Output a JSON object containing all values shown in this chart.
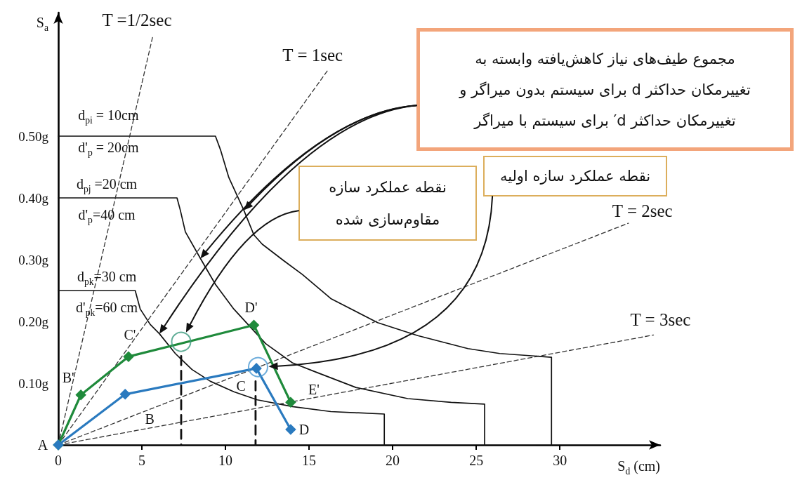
{
  "chart_data": {
    "type": "line",
    "xlabel": "S$_{d}$ (cm)",
    "ylabel": "S$_{a}$",
    "xlim": [
      0,
      36
    ],
    "ylim": [
      0,
      0.7
    ],
    "xticks": [
      0,
      5,
      10,
      15,
      20,
      25,
      30
    ],
    "yticks": [
      {
        "value": 0.1,
        "label": "0.10g"
      },
      {
        "value": 0.2,
        "label": "0.20g"
      },
      {
        "value": 0.3,
        "label": "0.30g"
      },
      {
        "value": 0.4,
        "label": "0.40g"
      },
      {
        "value": 0.5,
        "label": "0.50g"
      }
    ],
    "series": [
      {
        "color": "#111111",
        "x": [
          0,
          9.4,
          9.7,
          10.2,
          11.1,
          11.7,
          12.2,
          13.5,
          14.6,
          16.3,
          19.1,
          21.5,
          24.5,
          26.4,
          29.5,
          29.5
        ],
        "values": [
          0.5,
          0.5,
          0.478,
          0.433,
          0.38,
          0.34,
          0.325,
          0.298,
          0.276,
          0.237,
          0.198,
          0.177,
          0.156,
          0.148,
          0.142,
          0
        ]
      },
      {
        "color": "#111111",
        "x": [
          0,
          7.1,
          7.3,
          7.6,
          8.5,
          9.4,
          10.5,
          12.4,
          14.0,
          15.4,
          17.8,
          20.9,
          23.5,
          25.5,
          25.5
        ],
        "values": [
          0.4,
          0.4,
          0.38,
          0.345,
          0.302,
          0.26,
          0.22,
          0.164,
          0.133,
          0.118,
          0.093,
          0.075,
          0.069,
          0.066,
          0
        ]
      },
      {
        "color": "#111111",
        "x": [
          0,
          4.6,
          4.9,
          5.5,
          6.05,
          7.0,
          8.0,
          9.1,
          10.5,
          11.9,
          14.0,
          16.3,
          19.5,
          19.5
        ],
        "values": [
          0.25,
          0.25,
          0.22,
          0.195,
          0.18,
          0.148,
          0.122,
          0.103,
          0.086,
          0.073,
          0.062,
          0.054,
          0.05,
          0
        ]
      },
      {
        "color": "#1f8a3b",
        "marker": "diamond",
        "x": [
          0,
          1.35,
          4.2,
          11.7,
          13.9
        ],
        "values": [
          0,
          0.081,
          0.143,
          0.194,
          0.069
        ]
      },
      {
        "color": "#2a7abf",
        "marker": "diamond",
        "x": [
          0,
          4.0,
          11.85,
          13.9
        ],
        "values": [
          0,
          0.082,
          0.124,
          0.025
        ]
      },
      {
        "color": "#333333",
        "line_style": "dashed",
        "x": [
          0,
          5.67
        ],
        "values": [
          0,
          0.664
        ]
      },
      {
        "color": "#333333",
        "line_style": "dashed",
        "x": [
          0,
          16.1
        ],
        "values": [
          0,
          0.606
        ]
      },
      {
        "color": "#333333",
        "line_style": "dashed",
        "x": [
          0,
          34.1
        ],
        "values": [
          0,
          0.359
        ]
      },
      {
        "color": "#333333",
        "line_style": "dashed",
        "x": [
          0,
          35.6
        ],
        "values": [
          0,
          0.178
        ]
      },
      {
        "color": "#111111",
        "line_style": "dashed",
        "x": [
          7.35,
          7.35
        ],
        "values": [
          0.144,
          0
        ]
      },
      {
        "color": "#111111",
        "line_style": "dashed",
        "x": [
          11.8,
          11.8
        ],
        "values": [
          0.103,
          0
        ]
      },
      {
        "type": "scatter",
        "color": "#3b9a7e",
        "marker": "circle",
        "x": [
          7.35
        ],
        "values": [
          0.167
        ]
      },
      {
        "type": "scatter",
        "color": "#4a98d2",
        "marker": "circle",
        "x": [
          11.95
        ],
        "values": [
          0.126
        ]
      }
    ],
    "annotations": [
      {
        "text": "T =1/2sec",
        "x": 5.67,
        "y": 0.664
      },
      {
        "text": "T = 1sec",
        "x": 16.1,
        "y": 0.606
      },
      {
        "text": "T = 2sec",
        "x": 34.1,
        "y": 0.359
      },
      {
        "text": "T = 3sec",
        "x": 35.6,
        "y": 0.178
      },
      {
        "text": "d$_{pi}$ = 10cm",
        "x": 3.0,
        "y": 0.5
      },
      {
        "text": "d'$_{p}$ = 20cm",
        "x": 3.0,
        "y": 0.5
      },
      {
        "text": "d$_{pj}$ =20 cm",
        "x": 2.9,
        "y": 0.4
      },
      {
        "text": "d'$_{p}$=40 cm",
        "x": 2.9,
        "y": 0.4
      },
      {
        "text": "d$_{pk}$=30 cm",
        "x": 2.9,
        "y": 0.25
      },
      {
        "text": "d'$_{pk}$=60 cm",
        "x": 2.9,
        "y": 0.25
      },
      {
        "text": "A",
        "x": 0,
        "y": 0
      },
      {
        "text": "B'",
        "x": 1.35,
        "y": 0.081
      },
      {
        "text": "C'",
        "x": 4.2,
        "y": 0.143
      },
      {
        "text": "D'",
        "x": 11.7,
        "y": 0.194
      },
      {
        "text": "E'",
        "x": 13.9,
        "y": 0.069
      },
      {
        "text": "B",
        "x": 4.0,
        "y": 0.082
      },
      {
        "text": "C",
        "x": 11.85,
        "y": 0.124
      },
      {
        "text": "D",
        "x": 13.9,
        "y": 0.025
      },
      "مجموع طیف‌های نیاز کاهش‌یافته وابسته به تغییرمکان حداکثر d برای سیستم بدون میراگر و تغییرمکان حداکثر d′ برای سیستم با میراگر",
      "نقطه عملکرد سازه مقاوم‌سازی شده",
      "نقطه عملکرد سازه اولیه"
    ]
  }
}
